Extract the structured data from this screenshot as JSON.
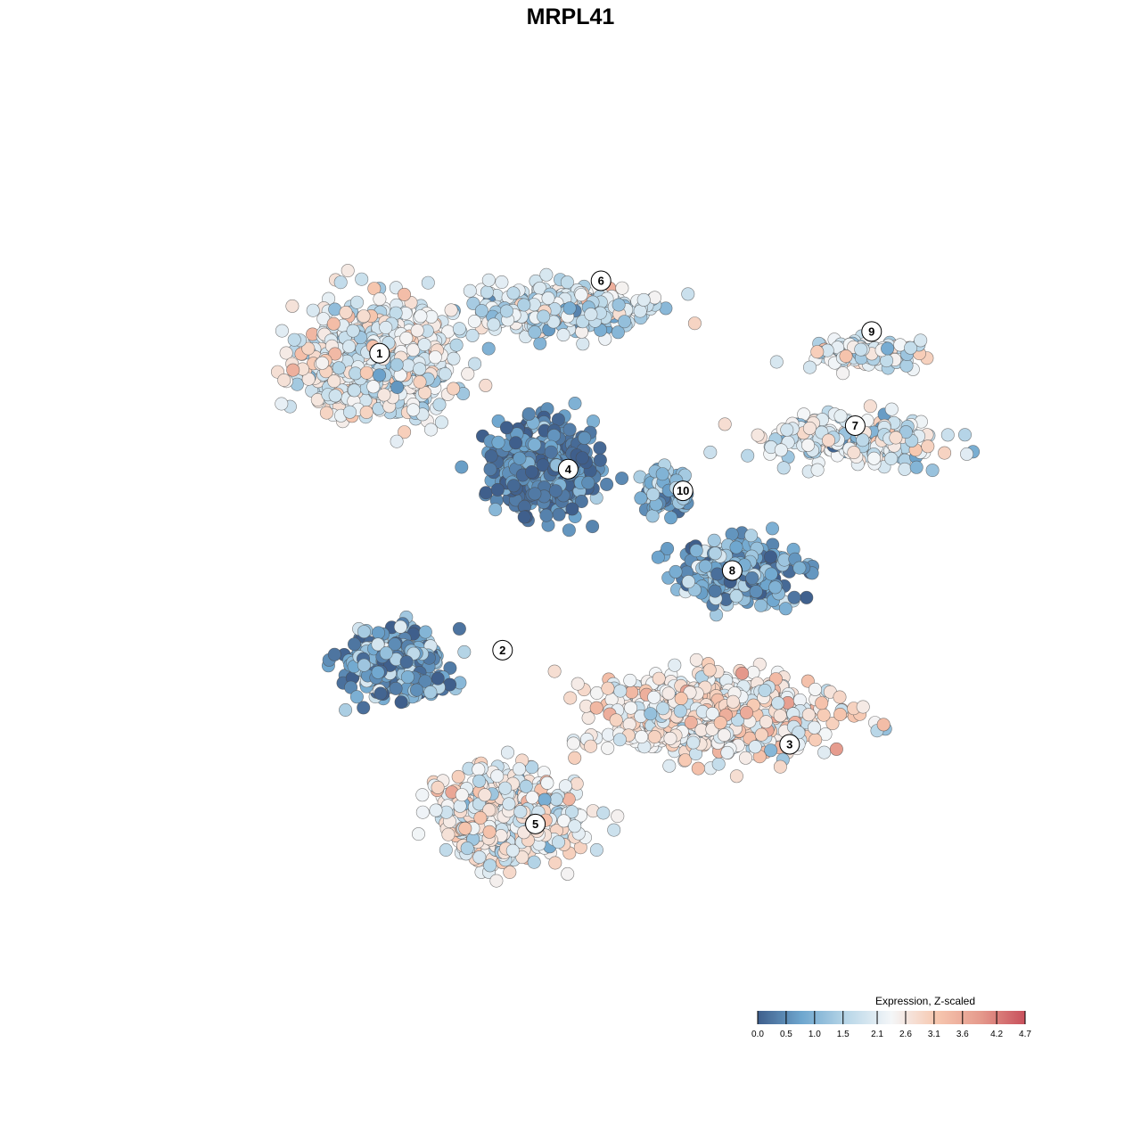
{
  "chart_data": {
    "type": "scatter",
    "title": "MRPL41",
    "legend": {
      "title": "Expression, Z-scaled",
      "placement": "bottom-right",
      "ticks": [
        "0.0",
        "0.5",
        "1.0",
        "1.5",
        "2.1",
        "2.6",
        "3.1",
        "3.6",
        "4.2",
        "4.7"
      ],
      "min": 0.0,
      "max": 4.7
    },
    "colors": {
      "stops": [
        "#3f5f8c",
        "#6fa7cf",
        "#b9d7e8",
        "#f4f6f8",
        "#f7c8b0",
        "#e59a8c",
        "#c8505c"
      ],
      "point_stroke": "#4a4a4a"
    },
    "clusters": [
      {
        "id": 1,
        "label": "1",
        "center": [
          -26,
          23
        ],
        "spread": [
          8.0,
          7.0
        ],
        "n": 750,
        "mean": 2.15,
        "sd": 0.55
      },
      {
        "id": 6,
        "label": "6",
        "center": [
          -4,
          30
        ],
        "spread": [
          9.0,
          2.8
        ],
        "n": 420,
        "mean": 1.9,
        "sd": 0.55
      },
      {
        "id": 9,
        "label": "9",
        "center": [
          33,
          24
        ],
        "spread": [
          6.0,
          2.2
        ],
        "n": 130,
        "mean": 2.0,
        "sd": 0.6
      },
      {
        "id": 7,
        "label": "7",
        "center": [
          31,
          12
        ],
        "spread": [
          10.0,
          3.0
        ],
        "n": 220,
        "mean": 2.0,
        "sd": 0.6
      },
      {
        "id": 4,
        "label": "4",
        "center": [
          -6,
          8
        ],
        "spread": [
          5.5,
          5.5
        ],
        "n": 520,
        "mean": 0.4,
        "sd": 0.4
      },
      {
        "id": 10,
        "label": "10",
        "center": [
          9,
          5
        ],
        "spread": [
          2.8,
          2.8
        ],
        "n": 80,
        "mean": 1.1,
        "sd": 0.5
      },
      {
        "id": 8,
        "label": "8",
        "center": [
          18,
          -6
        ],
        "spread": [
          6.5,
          4.0
        ],
        "n": 260,
        "mean": 0.8,
        "sd": 0.55
      },
      {
        "id": 2,
        "label": "2",
        "center": [
          -24,
          -19
        ],
        "spread": [
          5.5,
          4.0
        ],
        "n": 330,
        "mean": 0.9,
        "sd": 0.6
      },
      {
        "id": 3,
        "label": "3",
        "center": [
          15,
          -26
        ],
        "spread": [
          12.0,
          4.5
        ],
        "n": 900,
        "mean": 2.5,
        "sd": 0.55
      },
      {
        "id": 5,
        "label": "5",
        "center": [
          -11,
          -40
        ],
        "spread": [
          7.0,
          5.5
        ],
        "n": 650,
        "mean": 2.3,
        "sd": 0.55
      }
    ],
    "label_positions": {
      "1": [
        -26,
        24
      ],
      "6": [
        1,
        34
      ],
      "9": [
        34,
        27
      ],
      "7": [
        32,
        14
      ],
      "4": [
        -3,
        8
      ],
      "10": [
        11,
        5
      ],
      "8": [
        17,
        -6
      ],
      "2": [
        -11,
        -17
      ],
      "3": [
        24,
        -30
      ],
      "5": [
        -7,
        -41
      ]
    },
    "xlim": [
      -50,
      50
    ],
    "ylim": [
      -62,
      50
    ],
    "grid": false,
    "axes_visible": false
  }
}
